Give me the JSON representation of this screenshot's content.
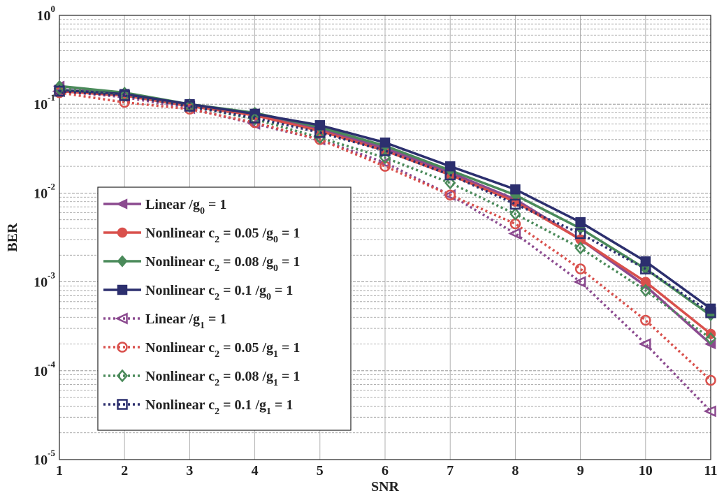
{
  "chart_data": {
    "type": "line",
    "x_label": "SNR",
    "y_label": "BER",
    "x": [
      1,
      2,
      3,
      4,
      5,
      6,
      7,
      8,
      9,
      10,
      11
    ],
    "xlim": [
      1,
      11
    ],
    "xticks": [
      1,
      2,
      3,
      4,
      5,
      6,
      7,
      8,
      9,
      10,
      11
    ],
    "ylim": [
      1e-05,
      1
    ],
    "log_y": true,
    "grid": true,
    "yticks": [
      {
        "value": 1e-05,
        "label": "10^-5"
      },
      {
        "value": 0.0001,
        "label": "10^-4"
      },
      {
        "value": 0.001,
        "label": "10^-3"
      },
      {
        "value": 0.01,
        "label": "10^-2"
      },
      {
        "value": 0.1,
        "label": "10^-1"
      },
      {
        "value": 1,
        "label": "10^0"
      }
    ],
    "series": [
      {
        "name": "Linear /g_0 = 1",
        "color": "#8b4a8f",
        "marker": "triangle-left",
        "dashed": false,
        "values": [
          0.16,
          0.13,
          0.098,
          0.078,
          0.052,
          0.032,
          0.017,
          0.0085,
          0.003,
          0.0009,
          0.0002
        ]
      },
      {
        "name": "Nonlinear c_2 = 0.05 /g_0 = 1",
        "color": "#d9504c",
        "marker": "circle",
        "dashed": false,
        "values": [
          0.14,
          0.125,
          0.095,
          0.075,
          0.05,
          0.03,
          0.016,
          0.008,
          0.003,
          0.001,
          0.00026
        ]
      },
      {
        "name": "Nonlinear c_2 = 0.08 /g_0 = 1",
        "color": "#4a8a5a",
        "marker": "diamond",
        "dashed": false,
        "values": [
          0.16,
          0.135,
          0.1,
          0.08,
          0.055,
          0.034,
          0.018,
          0.0095,
          0.004,
          0.0014,
          0.00042
        ]
      },
      {
        "name": "Nonlinear c_2 = 0.1 /g_0 = 1",
        "color": "#2c2f6e",
        "marker": "square",
        "dashed": false,
        "values": [
          0.145,
          0.13,
          0.1,
          0.078,
          0.058,
          0.037,
          0.02,
          0.011,
          0.0047,
          0.0017,
          0.0005
        ]
      },
      {
        "name": "Linear /g_1 = 1",
        "color": "#8b4a8f",
        "marker": "triangle-left",
        "dashed": true,
        "values": [
          0.14,
          0.12,
          0.09,
          0.06,
          0.04,
          0.022,
          0.0095,
          0.0035,
          0.001,
          0.0002,
          3.5e-05
        ]
      },
      {
        "name": "Nonlinear c_2 = 0.05 /g_1 = 1",
        "color": "#d9504c",
        "marker": "circle",
        "dashed": true,
        "values": [
          0.135,
          0.105,
          0.088,
          0.062,
          0.04,
          0.02,
          0.0095,
          0.0045,
          0.0014,
          0.00037,
          7.8e-05
        ]
      },
      {
        "name": "Nonlinear c_2 = 0.08 /g_1 = 1",
        "color": "#4a8a5a",
        "marker": "diamond",
        "dashed": true,
        "values": [
          0.15,
          0.125,
          0.095,
          0.068,
          0.042,
          0.025,
          0.013,
          0.0058,
          0.0024,
          0.0008,
          0.00023
        ]
      },
      {
        "name": "Nonlinear c_2 = 0.1 /g_1 = 1",
        "color": "#2c2f6e",
        "marker": "square",
        "dashed": true,
        "values": [
          0.14,
          0.125,
          0.095,
          0.07,
          0.048,
          0.03,
          0.016,
          0.0075,
          0.0035,
          0.0014,
          0.00045
        ]
      }
    ]
  }
}
